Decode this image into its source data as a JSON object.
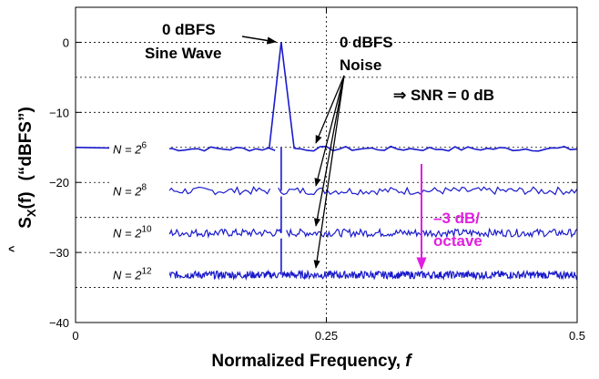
{
  "chart_data": {
    "type": "line",
    "xlabel": "Normalized Frequency, ",
    "xlabel_var": "f",
    "ylabel_quote": "(“dBFS”)",
    "xlim": [
      0,
      0.5
    ],
    "ylim": [
      -40,
      5
    ],
    "grid": true,
    "x_ticks": [
      {
        "value": 0,
        "label": "0"
      },
      {
        "value": 0.25,
        "label": "0.25"
      },
      {
        "value": 0.5,
        "label": "0.5"
      }
    ],
    "y_ticks": [
      {
        "value": 0,
        "label": "0"
      },
      {
        "value": -10,
        "label": "−10"
      },
      {
        "value": -20,
        "label": "−20"
      },
      {
        "value": -30,
        "label": "−30"
      },
      {
        "value": -40,
        "label": "−40"
      }
    ],
    "sine_peak": {
      "x": 0.205,
      "y": 0
    },
    "series": [
      {
        "label_base": "N = 2",
        "exponent": "6",
        "level": -15.2,
        "ripple": 0.35,
        "points": 64,
        "label_x": 0.03,
        "gap": [
          0.205,
          0.215
        ],
        "mainlobe_top": 0
      },
      {
        "label_base": "N = 2",
        "exponent": "8",
        "level": -21.2,
        "ripple": 0.55,
        "points": 150,
        "label_x": 0.03,
        "gap": [
          0.195,
          0.2
        ],
        "mainlobe_top": -15
      },
      {
        "label_base": "N = 2",
        "exponent": "10",
        "level": -27.2,
        "ripple": 0.55,
        "points": 300,
        "label_x": 0.03,
        "gap": [
          0.205,
          0.21
        ],
        "mainlobe_top": -22
      },
      {
        "label_base": "N = 2",
        "exponent": "12",
        "level": -33.2,
        "ripple": 0.55,
        "points": 600,
        "label_x": 0.03,
        "gap": [
          0.205,
          0.206
        ],
        "mainlobe_top": -28
      }
    ],
    "annotations": {
      "sine_line1": "0 dBFS",
      "sine_line2": "Sine Wave",
      "noise_line1": "0 dBFS",
      "noise_line2": "Noise",
      "snr": "⇒ SNR = 0 dB",
      "slope_line1": "–3 dB/",
      "slope_line2": "octave"
    },
    "colors": {
      "trace": "#1a1acc",
      "slope": "#e020e0",
      "grid": "#000000",
      "text": "#000000"
    }
  }
}
